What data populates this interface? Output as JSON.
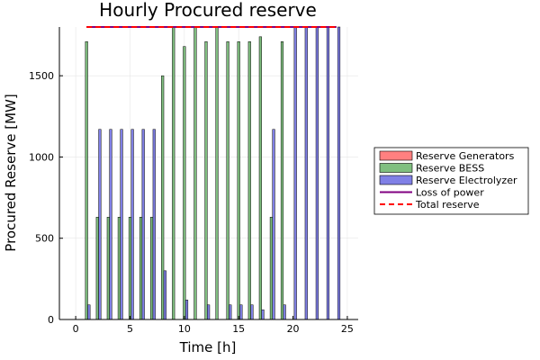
{
  "chart_data": {
    "type": "bar",
    "title": "Hourly Procured reserve",
    "xlabel": "Time [h]",
    "ylabel": "Procured Reserve [MW]",
    "xlim": [
      -1.5,
      26
    ],
    "ylim": [
      0,
      1800
    ],
    "xticks": [
      0,
      5,
      10,
      15,
      20,
      25
    ],
    "yticks": [
      0,
      500,
      1000,
      1500
    ],
    "grid": true,
    "legend_position": "right-outside",
    "x": [
      1,
      2,
      3,
      4,
      5,
      6,
      7,
      8,
      9,
      10,
      11,
      12,
      13,
      14,
      15,
      16,
      17,
      18,
      19,
      20,
      21,
      22,
      23,
      24
    ],
    "series": [
      {
        "name": "Reserve Generators",
        "kind": "bar",
        "color": "#ff8080",
        "border": "#000000",
        "values": [
          0,
          0,
          0,
          0,
          0,
          0,
          0,
          0,
          0,
          0,
          0,
          0,
          0,
          0,
          0,
          0,
          0,
          0,
          0,
          0,
          0,
          0,
          0,
          0
        ]
      },
      {
        "name": "Reserve BESS",
        "kind": "bar",
        "color": "#80bf80",
        "border": "#000000",
        "values": [
          1710,
          630,
          630,
          630,
          630,
          630,
          630,
          1500,
          1800,
          1680,
          1800,
          1710,
          1800,
          1710,
          1710,
          1710,
          1740,
          630,
          1710,
          0,
          0,
          0,
          0,
          0
        ]
      },
      {
        "name": "Reserve Electrolyzer",
        "kind": "bar",
        "color": "#8080e6",
        "border": "#000000",
        "values": [
          90,
          1170,
          1170,
          1170,
          1170,
          1170,
          1170,
          300,
          0,
          120,
          0,
          90,
          0,
          90,
          90,
          90,
          60,
          1170,
          90,
          1800,
          1800,
          1800,
          1800,
          1800
        ]
      },
      {
        "name": "Loss of power",
        "kind": "line",
        "color": "#800080",
        "dash": "solid",
        "values": [
          1800,
          1800,
          1800,
          1800,
          1800,
          1800,
          1800,
          1800,
          1800,
          1800,
          1800,
          1800,
          1800,
          1800,
          1800,
          1800,
          1800,
          1800,
          1800,
          1800,
          1800,
          1800,
          1800,
          1800
        ]
      },
      {
        "name": "Total reserve",
        "kind": "line",
        "color": "#ff0000",
        "dash": "dashed",
        "values": [
          1800,
          1800,
          1800,
          1800,
          1800,
          1800,
          1800,
          1800,
          1800,
          1800,
          1800,
          1800,
          1800,
          1800,
          1800,
          1800,
          1800,
          1800,
          1800,
          1800,
          1800,
          1800,
          1800,
          1800
        ]
      }
    ]
  }
}
